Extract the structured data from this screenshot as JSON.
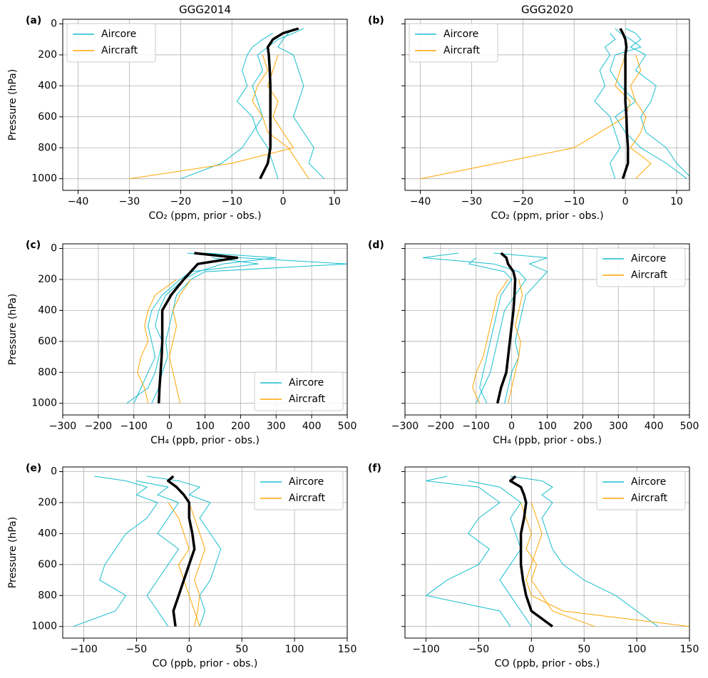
{
  "chart_data": [
    {
      "type": "line",
      "panel": "(a)",
      "title": "GGG2014",
      "xlabel": "CO₂ (ppm, prior - obs.)",
      "ylabel": "Pressure (hPa)",
      "ytick_labels": true,
      "grid": true,
      "legend_loc": "upper left",
      "xlim": [
        -43,
        12.5
      ],
      "xticks": [
        {
          "value": -40,
          "label": "−40"
        },
        {
          "value": -30,
          "label": "−30"
        },
        {
          "value": -20,
          "label": "−20"
        },
        {
          "value": -10,
          "label": "−10"
        },
        0,
        10
      ],
      "ylim": [
        1075,
        -30
      ],
      "yticks": [
        0,
        200,
        400,
        600,
        800,
        1000
      ],
      "pressure": [
        30,
        60,
        100,
        150,
        200,
        300,
        400,
        500,
        600,
        700,
        800,
        900,
        1000
      ],
      "series": [
        {
          "name": "Aircore",
          "color": "#17becf",
          "profiles": [
            [
              4,
              2,
              -1,
              -3,
              -5,
              -4,
              -6,
              -5,
              -4,
              -6,
              -8,
              -12,
              -20
            ],
            [
              2,
              1,
              0,
              -1,
              2,
              3,
              4,
              3,
              2,
              4,
              6,
              5,
              8
            ],
            [
              null,
              -2,
              -4,
              -6,
              -7,
              -8,
              -7,
              -9,
              -6,
              -5,
              -3,
              -2,
              -1
            ]
          ]
        },
        {
          "name": "Aircraft",
          "color": "#ffa500",
          "profiles": [
            [
              null,
              null,
              null,
              null,
              -1,
              -2,
              -3,
              -1,
              -2,
              0,
              2,
              -10,
              -30
            ],
            [
              null,
              null,
              null,
              null,
              -4,
              -3,
              -5,
              -6,
              -4,
              -3,
              1,
              3,
              5
            ]
          ]
        }
      ],
      "mean": {
        "color": "#000000",
        "values": [
          3,
          0,
          -2,
          -3,
          -2.8,
          -2.6,
          -2.5,
          -2.5,
          -2.5,
          -2.5,
          -2.5,
          -3,
          -4.5
        ]
      }
    },
    {
      "type": "line",
      "panel": "(b)",
      "title": "GGG2020",
      "xlabel": "CO₂ (ppm, prior - obs.)",
      "ytick_labels": false,
      "grid": true,
      "legend_loc": "upper left",
      "xlim": [
        -43,
        12.5
      ],
      "xticks": [
        {
          "value": -40,
          "label": "−40"
        },
        {
          "value": -30,
          "label": "−30"
        },
        {
          "value": -20,
          "label": "−20"
        },
        {
          "value": -10,
          "label": "−10"
        },
        0,
        10
      ],
      "ylim": [
        1075,
        -30
      ],
      "yticks": [
        0,
        200,
        400,
        600,
        800,
        1000
      ],
      "pressure": [
        30,
        60,
        100,
        150,
        200,
        300,
        400,
        500,
        600,
        700,
        800,
        900,
        1000
      ],
      "series": [
        {
          "name": "Aircore",
          "color": "#17becf",
          "profiles": [
            [
              -2,
              -1,
              1,
              3,
              -2,
              -3,
              -1,
              2,
              -2,
              0,
              3,
              8,
              12
            ],
            [
              0,
              2,
              3,
              1,
              4,
              2,
              6,
              5,
              3,
              4,
              8,
              10,
              13
            ],
            [
              null,
              -3,
              -2,
              -4,
              -3,
              -5,
              -4,
              -6,
              -3,
              -2,
              -1,
              -3,
              -2
            ]
          ]
        },
        {
          "name": "Aircraft",
          "color": "#ffa500",
          "profiles": [
            [
              null,
              null,
              null,
              null,
              0,
              -1,
              -2,
              1,
              0,
              -5,
              -10,
              -25,
              -40
            ],
            [
              null,
              null,
              null,
              null,
              2,
              3,
              1,
              2,
              4,
              3,
              1,
              5,
              2
            ]
          ]
        }
      ],
      "mean": {
        "color": "#000000",
        "values": [
          -1,
          -0.5,
          0,
          0.2,
          0,
          0,
          0,
          0,
          0.2,
          0.3,
          0.5,
          0.5,
          -0.5
        ]
      }
    },
    {
      "type": "line",
      "panel": "(c)",
      "xlabel": "CH₄ (ppb, prior - obs.)",
      "ylabel": "Pressure (hPa)",
      "ytick_labels": true,
      "grid": true,
      "legend_loc": "lower right",
      "xlim": [
        -300,
        500
      ],
      "xticks": [
        {
          "value": -300,
          "label": "−300"
        },
        {
          "value": -200,
          "label": "−200"
        },
        {
          "value": -100,
          "label": "−100"
        },
        0,
        100,
        200,
        300,
        400,
        500
      ],
      "ylim": [
        1075,
        -30
      ],
      "yticks": [
        0,
        200,
        400,
        600,
        800,
        1000
      ],
      "pressure": [
        30,
        60,
        100,
        150,
        200,
        300,
        400,
        500,
        600,
        700,
        800,
        900,
        1000
      ],
      "series": [
        {
          "name": "Aircore",
          "color": "#17becf",
          "profiles": [
            [
              100,
              300,
              150,
              80,
              40,
              -10,
              -30,
              -40,
              -20,
              -30,
              -40,
              -60,
              -120
            ],
            [
              50,
              200,
              500,
              100,
              60,
              20,
              10,
              0,
              -10,
              -5,
              -20,
              -30,
              -50
            ],
            [
              null,
              120,
              250,
              60,
              30,
              -20,
              -50,
              -60,
              -50,
              -40,
              -60,
              -80,
              -100
            ]
          ]
        },
        {
          "name": "Aircraft",
          "color": "#ffa500",
          "profiles": [
            [
              null,
              null,
              null,
              null,
              20,
              -40,
              -60,
              -70,
              -60,
              -80,
              -90,
              -70,
              -60
            ],
            [
              null,
              null,
              null,
              null,
              60,
              30,
              10,
              20,
              10,
              0,
              10,
              20,
              30
            ]
          ]
        }
      ],
      "mean": {
        "color": "#000000",
        "values": [
          70,
          190,
          80,
          60,
          40,
          5,
          -20,
          -20,
          -20,
          -22,
          -25,
          -28,
          -30
        ]
      }
    },
    {
      "type": "line",
      "panel": "(d)",
      "xlabel": "CH₄ (ppb, prior - obs.)",
      "ytick_labels": false,
      "grid": true,
      "legend_loc": "upper right",
      "xlim": [
        -300,
        500
      ],
      "xticks": [
        {
          "value": -300,
          "label": "−300"
        },
        {
          "value": -200,
          "label": "−200"
        },
        {
          "value": -100,
          "label": "−100"
        },
        0,
        100,
        200,
        300,
        400,
        500
      ],
      "ylim": [
        1075,
        -30
      ],
      "yticks": [
        0,
        200,
        400,
        600,
        800,
        1000
      ],
      "pressure": [
        30,
        60,
        100,
        150,
        200,
        300,
        400,
        500,
        600,
        700,
        800,
        900,
        1000
      ],
      "series": [
        {
          "name": "Aircore",
          "color": "#17becf",
          "profiles": [
            [
              -150,
              -250,
              -50,
              20,
              40,
              10,
              -20,
              -30,
              -40,
              -50,
              -60,
              -80,
              -100
            ],
            [
              -50,
              100,
              50,
              100,
              80,
              40,
              30,
              20,
              10,
              20,
              0,
              -10,
              -20
            ],
            [
              null,
              -100,
              -120,
              -20,
              0,
              -30,
              -40,
              -50,
              -60,
              -70,
              -80,
              -90,
              -70
            ]
          ]
        },
        {
          "name": "Aircraft",
          "color": "#ffa500",
          "profiles": [
            [
              null,
              null,
              null,
              null,
              -10,
              -40,
              -50,
              -60,
              -70,
              -80,
              -100,
              -110,
              -90
            ],
            [
              null,
              null,
              null,
              null,
              20,
              30,
              20,
              10,
              25,
              20,
              10,
              0,
              -10
            ]
          ]
        }
      ],
      "mean": {
        "color": "#000000",
        "values": [
          -30,
          -15,
          -10,
          5,
          10,
          8,
          5,
          0,
          -5,
          -10,
          -15,
          -30,
          -40
        ]
      }
    },
    {
      "type": "line",
      "panel": "(e)",
      "xlabel": "CO (ppb, prior - obs.)",
      "ylabel": "Pressure (hPa)",
      "ytick_labels": true,
      "grid": true,
      "legend_loc": "upper right",
      "xlim": [
        -120,
        150
      ],
      "xticks": [
        {
          "value": -100,
          "label": "−100"
        },
        {
          "value": -50,
          "label": "−50"
        },
        0,
        50,
        100,
        150
      ],
      "ylim": [
        1075,
        -30
      ],
      "yticks": [
        0,
        200,
        400,
        600,
        800,
        1000
      ],
      "pressure": [
        30,
        60,
        100,
        150,
        200,
        300,
        400,
        500,
        600,
        700,
        800,
        900,
        1000
      ],
      "series": [
        {
          "name": "Aircore",
          "color": "#17becf",
          "profiles": [
            [
              -90,
              -60,
              -40,
              -50,
              -30,
              -40,
              -60,
              -70,
              -80,
              -85,
              -60,
              -70,
              -110
            ],
            [
              -40,
              -10,
              10,
              0,
              20,
              10,
              20,
              30,
              25,
              20,
              10,
              15,
              10
            ],
            [
              null,
              -50,
              -20,
              -30,
              -10,
              -20,
              -30,
              -10,
              -20,
              -30,
              -40,
              -30,
              -20
            ]
          ]
        },
        {
          "name": "Aircraft",
          "color": "#ffa500",
          "profiles": [
            [
              null,
              null,
              null,
              null,
              -20,
              -10,
              -5,
              0,
              -10,
              -5,
              0,
              5,
              10
            ],
            [
              null,
              null,
              null,
              null,
              0,
              5,
              10,
              15,
              10,
              5,
              10,
              8,
              5
            ]
          ]
        }
      ],
      "mean": {
        "color": "#000000",
        "values": [
          -15,
          -20,
          -12,
          -5,
          0,
          0,
          3,
          5,
          0,
          -5,
          -10,
          -15,
          -13
        ]
      }
    },
    {
      "type": "line",
      "panel": "(f)",
      "xlabel": "CO (ppb, prior - obs.)",
      "ytick_labels": false,
      "grid": true,
      "legend_loc": "upper right",
      "xlim": [
        -120,
        150
      ],
      "xticks": [
        {
          "value": -100,
          "label": "−100"
        },
        {
          "value": -50,
          "label": "−50"
        },
        0,
        50,
        100,
        150
      ],
      "ylim": [
        1075,
        -30
      ],
      "yticks": [
        0,
        200,
        400,
        600,
        800,
        1000
      ],
      "pressure": [
        30,
        60,
        100,
        150,
        200,
        300,
        400,
        500,
        600,
        700,
        800,
        900,
        1000
      ],
      "series": [
        {
          "name": "Aircore",
          "color": "#17becf",
          "profiles": [
            [
              -80,
              -100,
              -50,
              -40,
              -30,
              -50,
              -60,
              -40,
              -50,
              -80,
              -100,
              -30,
              -20
            ],
            [
              -20,
              10,
              20,
              10,
              20,
              10,
              15,
              20,
              30,
              50,
              80,
              100,
              120
            ],
            [
              null,
              -60,
              -30,
              -20,
              -10,
              -20,
              -15,
              -10,
              -20,
              -30,
              -20,
              -10,
              0
            ]
          ]
        },
        {
          "name": "Aircraft",
          "color": "#ffa500",
          "profiles": [
            [
              null,
              null,
              null,
              null,
              -10,
              -5,
              0,
              -5,
              5,
              0,
              10,
              20,
              60
            ],
            [
              null,
              null,
              null,
              null,
              0,
              5,
              10,
              5,
              0,
              -5,
              0,
              30,
              150
            ]
          ]
        }
      ],
      "mean": {
        "color": "#000000",
        "values": [
          -15,
          -20,
          -10,
          -7,
          -5,
          -7,
          -10,
          -10,
          -10,
          -8,
          -5,
          0,
          20
        ]
      }
    }
  ]
}
